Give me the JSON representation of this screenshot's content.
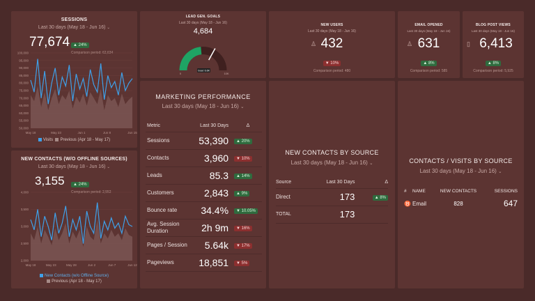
{
  "sessions": {
    "title": "SESSIONS",
    "date_range": "Last 30 days (May 18 - Jun 16)",
    "value": "77,674",
    "badge": "▲ 24%",
    "comparison": "Comparison period: 62,634",
    "y_ticks": [
      "100,000",
      "95,000",
      "90,000",
      "85,000",
      "80,000",
      "75,000",
      "70,000",
      "65,000",
      "60,000",
      "55,000",
      "50,000"
    ],
    "x_ticks": [
      "May 18",
      "May 23",
      "Jun 1",
      "Jun 8",
      "Jun 15"
    ],
    "legend_current": "Visits",
    "legend_previous": "Previous (Apr 18 - May 17)"
  },
  "new_contacts": {
    "title": "NEW CONTACTS (W/O OFFLINE SOURCES)",
    "date_range": "Last 30 days (May 18 - Jun 16)",
    "value": "3,155",
    "badge": "▲ 24%",
    "comparison": "Comparison period: 2,552",
    "y_ticks": [
      "4,000",
      "3,500",
      "3,000",
      "2,500",
      "2,000"
    ],
    "x_ticks": [
      "May 18",
      "May 23",
      "May 28",
      "Jun 2",
      "Jun 7",
      "Jun 12"
    ],
    "legend_current": "New Contacts (w/o Offline Source)",
    "legend_previous": "Previous (Apr 18 - May 17)"
  },
  "lead_gen": {
    "title": "LEAD GEN. GOALS",
    "date_range": "Last 30 days (May 18 - Jun 16)",
    "value": "4,684",
    "scale_min": "0",
    "scale_max": "10K",
    "needle_label": "Goal: 6.6K",
    "fraction": 0.47,
    "goal_fraction": 0.66,
    "gauge_color": "#1fa364"
  },
  "new_users": {
    "title": "NEW USERS",
    "date_range": "Last 30 days (May 18 - Jun 16)",
    "value": "432",
    "badge": "▼ 10%",
    "comparison": "Comparison period: 480"
  },
  "email_opened": {
    "title": "EMAIL OPENED",
    "date_range": "Last 30 days (May 18 - Jun 16)",
    "value": "631",
    "badge": "▲ 8%",
    "comparison": "Comparison period: 585"
  },
  "blog_views": {
    "title": "BLOG POST VIEWS",
    "date_range": "Last 30 days (May 18 - Jun 16)",
    "value": "6,413",
    "badge": "▲ 8%",
    "comparison": "Comparison period: 5,925"
  },
  "marketing": {
    "title": "MARKETING PERFORMANCE",
    "date_range": "Last 30 days (May 18 - Jun 16)",
    "col_metric": "Metric",
    "col_period": "Last 30 Days",
    "col_delta": "Δ",
    "rows": [
      {
        "metric": "Sessions",
        "value": "53,390",
        "delta": "▲ 20%",
        "dir": "up"
      },
      {
        "metric": "Contacts",
        "value": "3,960",
        "delta": "▼ 10%",
        "dir": "down"
      },
      {
        "metric": "Leads",
        "value": "85.3",
        "delta": "▲ 14%",
        "dir": "up"
      },
      {
        "metric": "Customers",
        "value": "2,843",
        "delta": "▲ 9%",
        "dir": "up"
      },
      {
        "metric": "Bounce rate",
        "value": "34.4%",
        "delta": "▼ 10.05%",
        "dir": "up"
      },
      {
        "metric": "Avg. Session Duration",
        "value": "2h 9m",
        "delta": "▼ 16%",
        "dir": "down"
      },
      {
        "metric": "Pages / Session",
        "value": "5.64k",
        "delta": "▼ 17%",
        "dir": "down"
      },
      {
        "metric": "Pageviews",
        "value": "18,851",
        "delta": "▼ 5%",
        "dir": "down"
      }
    ]
  },
  "contacts_by_source": {
    "title": "NEW CONTACTS BY SOURCE",
    "date_range": "Last 30 days (May 18 - Jun 16)",
    "col_source": "Source",
    "col_period": "Last 30 Days",
    "col_delta": "Δ",
    "row_source": "Direct",
    "row_value": "173",
    "row_delta": "▲ 8%",
    "total_label": "TOTAL",
    "total_value": "173"
  },
  "contacts_visits": {
    "title": "CONTACTS / VISITS BY SOURCE",
    "date_range": "Last 30 days (May 18 - Jun 16)",
    "col_hash": "#",
    "col_name": "NAME",
    "col_contacts": "NEW CONTACTS",
    "col_sessions": "SESSIONS",
    "row_name": "Email",
    "row_contacts": "828",
    "row_sessions": "647"
  },
  "chart_data": [
    {
      "type": "line",
      "title": "SESSIONS",
      "ylim": [
        50000,
        100000
      ],
      "series": [
        {
          "name": "Visits",
          "values": [
            82000,
            74000,
            96000,
            70000,
            88000,
            66000,
            80000,
            90000,
            72000,
            84000,
            78000,
            92000,
            68000,
            86000,
            76000,
            83000,
            71000,
            89000,
            79000,
            74000,
            93000,
            69000,
            85000,
            77000,
            81000,
            72000,
            87000,
            75000,
            80000,
            83000
          ]
        },
        {
          "name": "Previous (Apr 18 - May 17)",
          "values": [
            72000,
            68000,
            78000,
            64000,
            74000,
            62000,
            70000,
            76000,
            66000,
            72000,
            69000,
            75000,
            63000,
            71000,
            67000,
            73000,
            65000,
            74000,
            70000,
            66000,
            76000,
            62000,
            72000,
            68000,
            70000,
            64000,
            73000,
            66000,
            69000,
            71000
          ]
        }
      ]
    },
    {
      "type": "line",
      "title": "NEW CONTACTS (W/O OFFLINE SOURCES)",
      "ylim": [
        2000,
        4000
      ],
      "series": [
        {
          "name": "New Contacts (w/o Offline Source)",
          "values": [
            3200,
            2900,
            3500,
            2700,
            3300,
            3000,
            2600,
            3400,
            2800,
            3100,
            3600,
            2700,
            3200,
            2900,
            3300,
            2500,
            3450,
            3000,
            2800,
            3700,
            2650,
            3150,
            2900,
            3250,
            2950,
            3100,
            2800,
            3300,
            3050,
            3000
          ]
        },
        {
          "name": "Previous (Apr 18 - May 17)",
          "values": [
            2800,
            2600,
            3000,
            2500,
            2900,
            2700,
            2450,
            2950,
            2600,
            2800,
            3100,
            2500,
            2850,
            2650,
            2900,
            2400,
            3000,
            2700,
            2600,
            3200,
            2500,
            2800,
            2650,
            2900,
            2700,
            2800,
            2600,
            2950,
            2750,
            2700
          ]
        }
      ]
    }
  ]
}
